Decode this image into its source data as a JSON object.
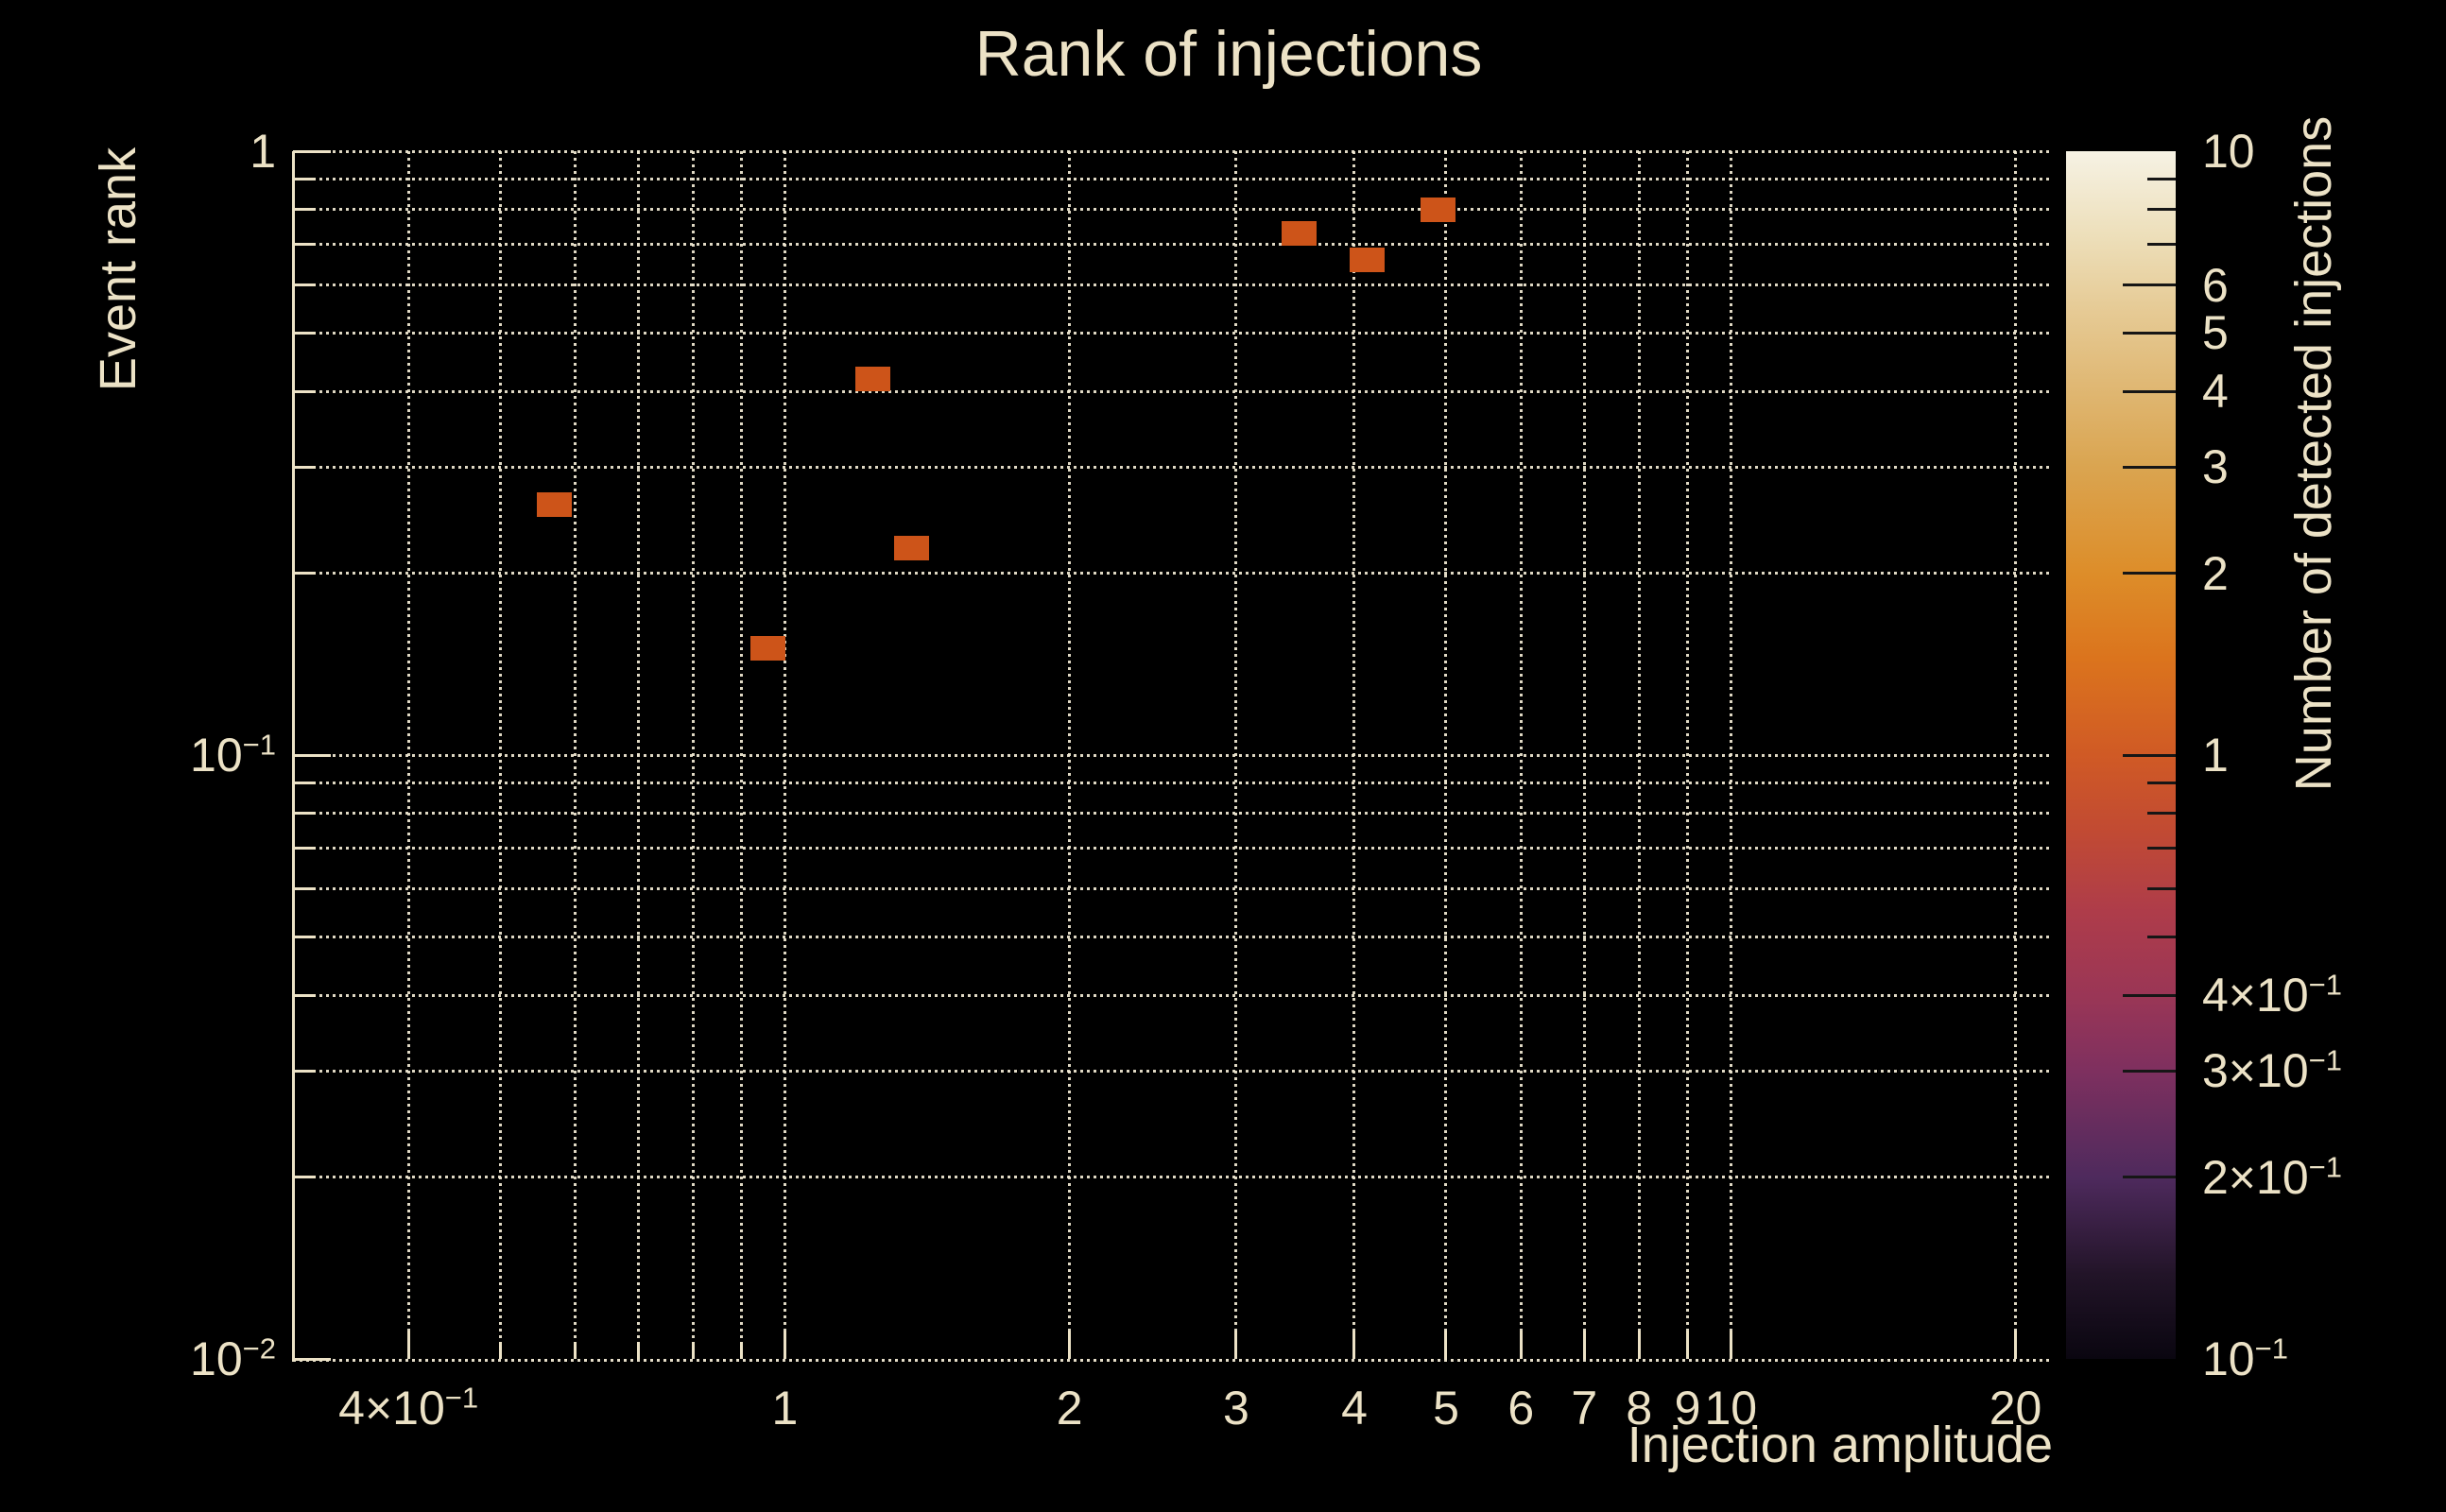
{
  "chart_data": {
    "type": "scatter",
    "title": "Rank of injections",
    "xlabel": "Injection amplitude",
    "ylabel": "Event rank",
    "colorbar_label": "Number of detected injections",
    "x_scale": "log",
    "y_scale": "log",
    "color_scale": "log",
    "xlim": [
      0.302,
      21.9
    ],
    "ylim": [
      0.01,
      1.0
    ],
    "clim": [
      0.1,
      10
    ],
    "grid": "dotted",
    "legend_position": "colorbar-right",
    "points": [
      {
        "x": 0.57,
        "y": 0.26,
        "detected_injections": 1
      },
      {
        "x": 0.96,
        "y": 0.15,
        "detected_injections": 1
      },
      {
        "x": 1.24,
        "y": 0.42,
        "detected_injections": 1
      },
      {
        "x": 1.36,
        "y": 0.22,
        "detected_injections": 1
      },
      {
        "x": 3.5,
        "y": 0.73,
        "detected_injections": 1
      },
      {
        "x": 4.13,
        "y": 0.66,
        "detected_injections": 1
      },
      {
        "x": 4.9,
        "y": 0.8,
        "detected_injections": 1
      }
    ],
    "marker": {
      "shape": "square",
      "width": 37,
      "height": 26,
      "color": "#cd5419"
    },
    "x_ticks_major": [
      {
        "v": 0.4,
        "base": "4×10",
        "exp": "−1"
      },
      {
        "v": 1,
        "base": "1"
      },
      {
        "v": 2,
        "base": "2"
      },
      {
        "v": 3,
        "base": "3"
      },
      {
        "v": 4,
        "base": "4"
      },
      {
        "v": 5,
        "base": "5"
      },
      {
        "v": 6,
        "base": "6"
      },
      {
        "v": 7,
        "base": "7"
      },
      {
        "v": 8,
        "base": "8"
      },
      {
        "v": 9,
        "base": "9"
      },
      {
        "v": 10,
        "base": "10"
      },
      {
        "v": 20,
        "base": "20"
      }
    ],
    "x_ticks_minor": [
      0.5,
      0.6,
      0.7,
      0.8,
      0.9
    ],
    "y_ticks_major": [
      {
        "v": 1,
        "base": "1"
      },
      {
        "v": 0.1,
        "base": "10",
        "exp": "−1"
      },
      {
        "v": 0.01,
        "base": "10",
        "exp": "−2"
      }
    ],
    "y_ticks_minor": [
      0.9,
      0.8,
      0.7,
      0.6,
      0.5,
      0.4,
      0.3,
      0.2,
      0.09,
      0.08,
      0.07,
      0.06,
      0.05,
      0.04,
      0.03,
      0.02
    ],
    "colorbar_ticks_labeled": [
      {
        "v": 10,
        "base": "10"
      },
      {
        "v": 6,
        "base": "6"
      },
      {
        "v": 5,
        "base": "5"
      },
      {
        "v": 4,
        "base": "4"
      },
      {
        "v": 3,
        "base": "3"
      },
      {
        "v": 2,
        "base": "2"
      },
      {
        "v": 1,
        "base": "1"
      },
      {
        "v": 0.4,
        "base": "4×10",
        "exp": "−1"
      },
      {
        "v": 0.3,
        "base": "3×10",
        "exp": "−1"
      },
      {
        "v": 0.2,
        "base": "2×10",
        "exp": "−1"
      },
      {
        "v": 0.1,
        "base": "10",
        "exp": "−1"
      }
    ],
    "colorbar_ticks_minor": [
      9,
      8,
      7,
      0.9,
      0.8,
      0.7,
      0.6,
      0.5
    ],
    "colorbar_gradient": [
      {
        "at": 0.0,
        "color": "#0a0610"
      },
      {
        "at": 0.07,
        "color": "#221428"
      },
      {
        "at": 0.15,
        "color": "#4e2a5d"
      },
      {
        "at": 0.24,
        "color": "#7f305f"
      },
      {
        "at": 0.3,
        "color": "#9a3656"
      },
      {
        "at": 0.37,
        "color": "#ae3c4a"
      },
      {
        "at": 0.44,
        "color": "#c24b32"
      },
      {
        "at": 0.5,
        "color": "#d05a25"
      },
      {
        "at": 0.58,
        "color": "#db741d"
      },
      {
        "at": 0.65,
        "color": "#dd8d29"
      },
      {
        "at": 0.74,
        "color": "#daa551"
      },
      {
        "at": 0.81,
        "color": "#e0b976"
      },
      {
        "at": 0.87,
        "color": "#e6cb96"
      },
      {
        "at": 0.93,
        "color": "#eddfba"
      },
      {
        "at": 1.0,
        "color": "#f6f2e4"
      }
    ],
    "colors": {
      "background": "#000000",
      "text": "#ece2c6",
      "grid": "#f2ead4",
      "spine": "#ece2c6",
      "colorbar_tick": "#161616",
      "marker": "#cd5419"
    }
  }
}
